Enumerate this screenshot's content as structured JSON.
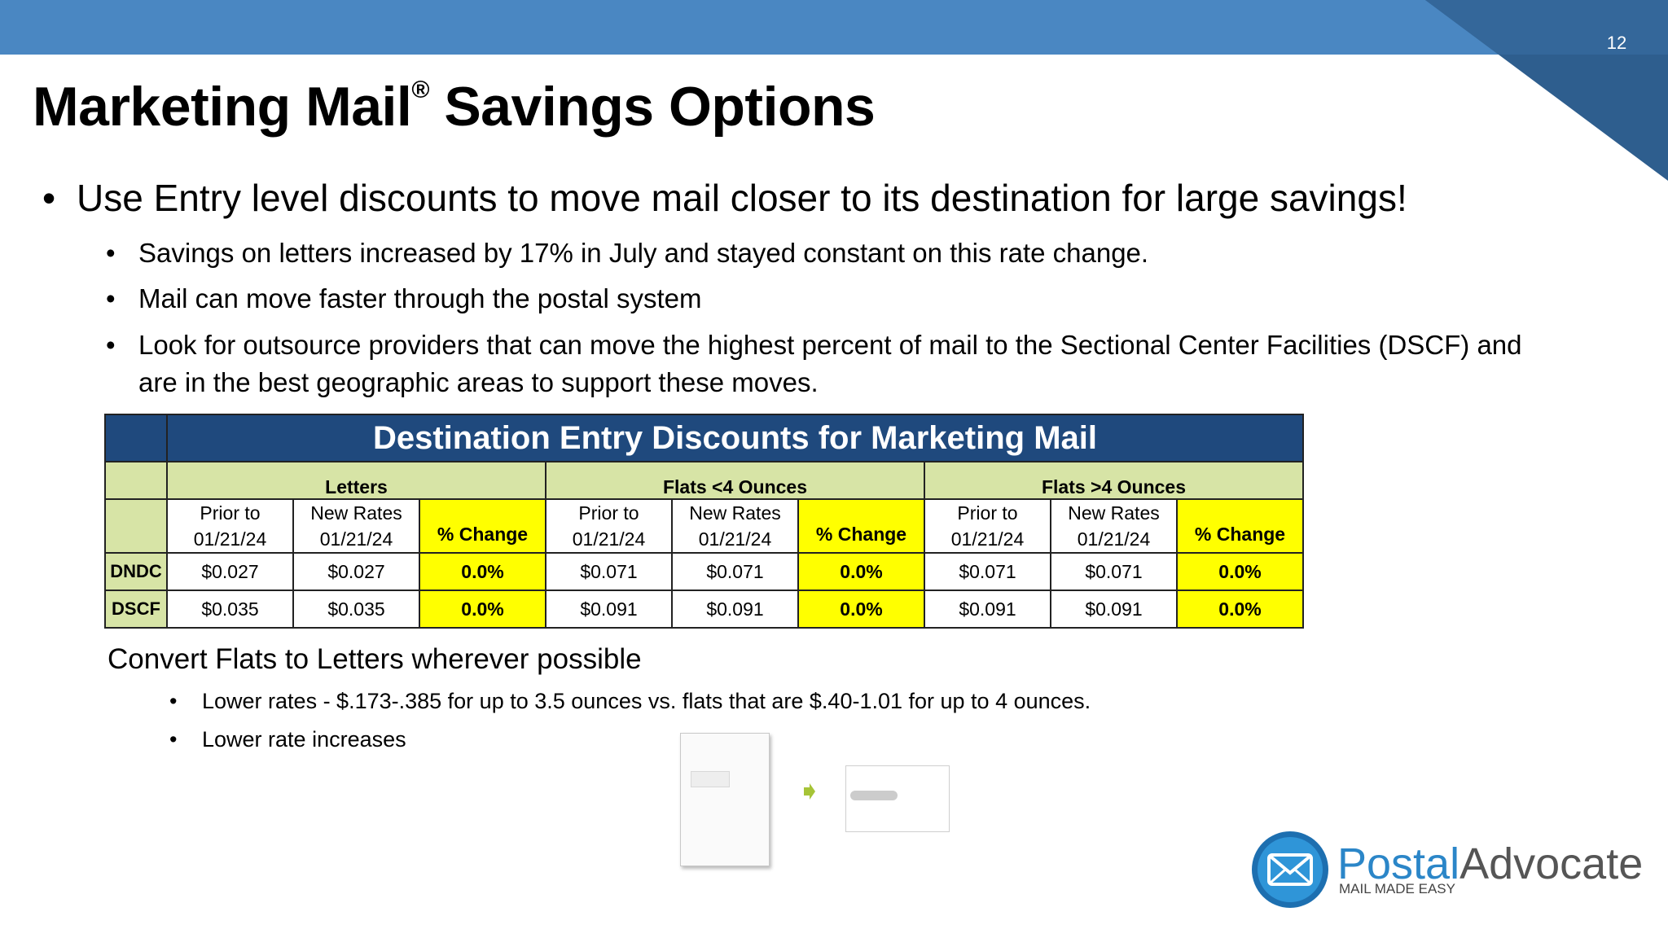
{
  "slide": {
    "page_number": "12",
    "title": "Marketing Mail",
    "title_mark": "®",
    "title_suffix": " Savings Options",
    "bullets": {
      "main": "Use Entry level discounts to move mail closer to its destination for large savings!",
      "sub": [
        "Savings on letters increased by 17% in July and stayed constant on this rate change.",
        "Mail can move faster through the postal system",
        "Look for outsource providers that can move the highest percent of mail to the Sectional Center Facilities (DSCF) and are in the best geographic areas to support these moves."
      ],
      "bullet_char": "•"
    }
  },
  "table": {
    "title": "Destination Entry Discounts for Marketing Mail",
    "groups": [
      "Letters",
      "Flats <4 Ounces",
      "Flats >4 Ounces"
    ],
    "sub_headers": {
      "prior_line1": "Prior to",
      "prior_line2": "01/21/24",
      "new_line1": "New Rates",
      "new_line2": "01/21/24",
      "change": "% Change"
    },
    "rows": [
      {
        "label": "DNDC",
        "values": [
          "$0.027",
          "$0.027",
          "0.0%",
          "$0.071",
          "$0.071",
          "0.0%",
          "$0.071",
          "$0.071",
          "0.0%"
        ]
      },
      {
        "label": "DSCF",
        "values": [
          "$0.035",
          "$0.035",
          "0.0%",
          "$0.091",
          "$0.091",
          "0.0%",
          "$0.091",
          "$0.091",
          "0.0%"
        ]
      }
    ]
  },
  "convert": {
    "heading": "Convert Flats to Letters wherever possible",
    "bullets": [
      "Lower rates - $.173-.385 for up to 3.5 ounces vs. flats that are $.40-1.01 for up to 4 ounces.",
      "Lower rate increases"
    ]
  },
  "images": {
    "large_envelope_icon": "flat-envelope",
    "arrow_icon": "arrow-right",
    "small_envelope_icon": "letter-envelope"
  },
  "logo": {
    "brand_part1": "Postal",
    "brand_part2": "Advocate",
    "tagline": "MAIL MADE EASY",
    "icon": "envelope-icon"
  },
  "colors": {
    "header_blue": "#4a87c2",
    "corner_dark": "#2e5e8e",
    "table_header": "#1f497d",
    "table_green": "#d7e4a6",
    "table_yellow": "#ffff00",
    "logo_blue": "#2b86c8"
  }
}
